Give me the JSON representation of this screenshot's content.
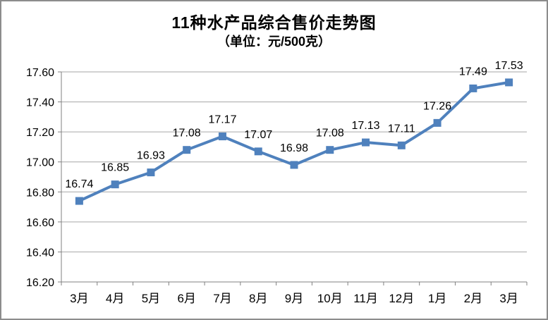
{
  "frame": {
    "background": "#FFFFFF",
    "border_color": "#8C8C8C"
  },
  "chart_data": {
    "type": "line",
    "title": "11种水产品综合售价走势图",
    "subtitle": "（单位：元/500克）",
    "categories": [
      "3月",
      "4月",
      "5月",
      "6月",
      "7月",
      "8月",
      "9月",
      "10月",
      "11月",
      "12月",
      "1月",
      "2月",
      "3月"
    ],
    "values": [
      16.74,
      16.85,
      16.93,
      17.08,
      17.17,
      17.07,
      16.98,
      17.08,
      17.13,
      17.11,
      17.26,
      17.49,
      17.53
    ],
    "value_labels": [
      "16.74",
      "16.85",
      "16.93",
      "17.08",
      "17.17",
      "17.07",
      "16.98",
      "17.08",
      "17.13",
      "17.11",
      "17.26",
      "17.49",
      "17.53"
    ],
    "y_ticks": [
      "16.20",
      "16.40",
      "16.60",
      "16.80",
      "17.00",
      "17.20",
      "17.40",
      "17.60"
    ],
    "ylim": [
      16.2,
      17.6
    ],
    "grid": true,
    "legend": "none",
    "line_color": "#4F81BD",
    "marker": "square",
    "marker_size": 11,
    "gridline_color": "#A6A6A6",
    "axis_color": "#808080",
    "label_color": "#000000"
  }
}
